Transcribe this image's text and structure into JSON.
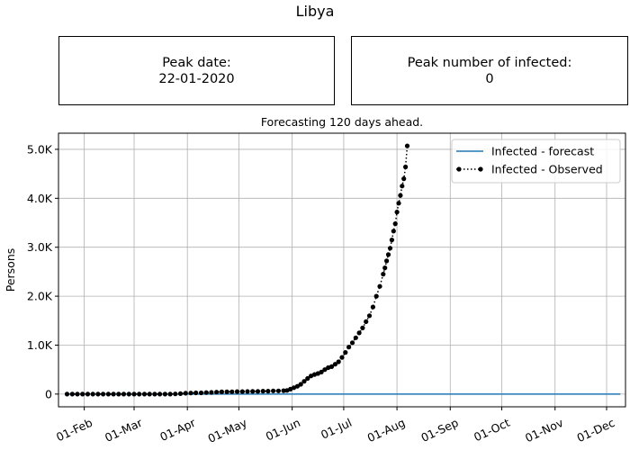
{
  "figure": {
    "title": "Libya",
    "subtitle": "Forecasting 120 days ahead."
  },
  "info_boxes": {
    "peak_date_label": "Peak date:",
    "peak_date_value": "22-01-2020",
    "peak_infected_label": "Peak number of infected:",
    "peak_infected_value": "0"
  },
  "colors": {
    "forecast": "#1f77b4",
    "observed": "#000000",
    "grid": "#b0b0b0"
  },
  "chart_data": {
    "type": "line",
    "ylabel": "Persons",
    "xlim": [
      "2020-01-17",
      "2020-12-12"
    ],
    "ylim": [
      -260,
      5330
    ],
    "x_ticks": [
      {
        "date": "2020-02-01",
        "label": "01-Feb"
      },
      {
        "date": "2020-03-01",
        "label": "01-Mar"
      },
      {
        "date": "2020-04-01",
        "label": "01-Apr"
      },
      {
        "date": "2020-05-01",
        "label": "01-May"
      },
      {
        "date": "2020-06-01",
        "label": "01-Jun"
      },
      {
        "date": "2020-07-01",
        "label": "01-Jul"
      },
      {
        "date": "2020-08-01",
        "label": "01-Aug"
      },
      {
        "date": "2020-09-01",
        "label": "01-Sep"
      },
      {
        "date": "2020-10-01",
        "label": "01-Oct"
      },
      {
        "date": "2020-11-01",
        "label": "01-Nov"
      },
      {
        "date": "2020-12-01",
        "label": "01-Dec"
      }
    ],
    "y_ticks": [
      {
        "value": 0,
        "label": "0"
      },
      {
        "value": 1000,
        "label": "1.0K"
      },
      {
        "value": 2000,
        "label": "2.0K"
      },
      {
        "value": 3000,
        "label": "3.0K"
      },
      {
        "value": 4000,
        "label": "4.0K"
      },
      {
        "value": 5000,
        "label": "5.0K"
      }
    ],
    "grid": true,
    "legend_position": "top-right",
    "series": [
      {
        "name": "Infected - forecast",
        "style": "solid",
        "x": [
          "2020-01-22",
          "2020-12-09"
        ],
        "y": [
          0,
          0
        ]
      },
      {
        "name": "Infected - Observed",
        "style": "dotted-markers",
        "x": [
          "2020-01-22",
          "2020-01-25",
          "2020-01-28",
          "2020-01-31",
          "2020-02-03",
          "2020-02-06",
          "2020-02-09",
          "2020-02-12",
          "2020-02-15",
          "2020-02-18",
          "2020-02-21",
          "2020-02-24",
          "2020-02-27",
          "2020-03-01",
          "2020-03-04",
          "2020-03-07",
          "2020-03-10",
          "2020-03-13",
          "2020-03-16",
          "2020-03-19",
          "2020-03-22",
          "2020-03-25",
          "2020-03-28",
          "2020-03-31",
          "2020-04-03",
          "2020-04-06",
          "2020-04-09",
          "2020-04-12",
          "2020-04-15",
          "2020-04-18",
          "2020-04-21",
          "2020-04-24",
          "2020-04-27",
          "2020-04-30",
          "2020-05-03",
          "2020-05-06",
          "2020-05-09",
          "2020-05-12",
          "2020-05-15",
          "2020-05-18",
          "2020-05-21",
          "2020-05-24",
          "2020-05-27",
          "2020-05-29",
          "2020-05-31",
          "2020-06-02",
          "2020-06-04",
          "2020-06-06",
          "2020-06-08",
          "2020-06-10",
          "2020-06-12",
          "2020-06-14",
          "2020-06-16",
          "2020-06-18",
          "2020-06-20",
          "2020-06-22",
          "2020-06-24",
          "2020-06-26",
          "2020-06-28",
          "2020-06-30",
          "2020-07-02",
          "2020-07-04",
          "2020-07-06",
          "2020-07-08",
          "2020-07-10",
          "2020-07-12",
          "2020-07-14",
          "2020-07-16",
          "2020-07-18",
          "2020-07-20",
          "2020-07-22",
          "2020-07-24",
          "2020-07-25",
          "2020-07-26",
          "2020-07-27",
          "2020-07-28",
          "2020-07-29",
          "2020-07-30",
          "2020-07-31",
          "2020-08-01",
          "2020-08-02",
          "2020-08-03",
          "2020-08-04",
          "2020-08-05",
          "2020-08-06",
          "2020-08-07",
          "2020-08-08",
          "2020-08-09",
          "2020-08-10",
          "2020-08-11",
          "2020-08-12"
        ],
        "y": [
          0,
          0,
          0,
          0,
          0,
          0,
          0,
          0,
          0,
          0,
          0,
          0,
          0,
          0,
          0,
          0,
          0,
          0,
          0,
          0,
          0,
          3,
          8,
          18,
          22,
          25,
          25,
          30,
          35,
          40,
          45,
          45,
          48,
          50,
          50,
          52,
          55,
          55,
          60,
          60,
          65,
          65,
          70,
          75,
          100,
          130,
          160,
          200,
          260,
          320,
          370,
          400,
          420,
          450,
          500,
          540,
          560,
          610,
          660,
          750,
          850,
          960,
          1050,
          1150,
          1250,
          1350,
          1480,
          1600,
          1780,
          2000,
          2200,
          2450,
          2580,
          2720,
          2850,
          2980,
          3150,
          3330,
          3480,
          3720,
          3900,
          4060,
          4250,
          4400,
          4640,
          5070,
          null,
          null,
          null,
          null,
          null
        ]
      }
    ]
  }
}
